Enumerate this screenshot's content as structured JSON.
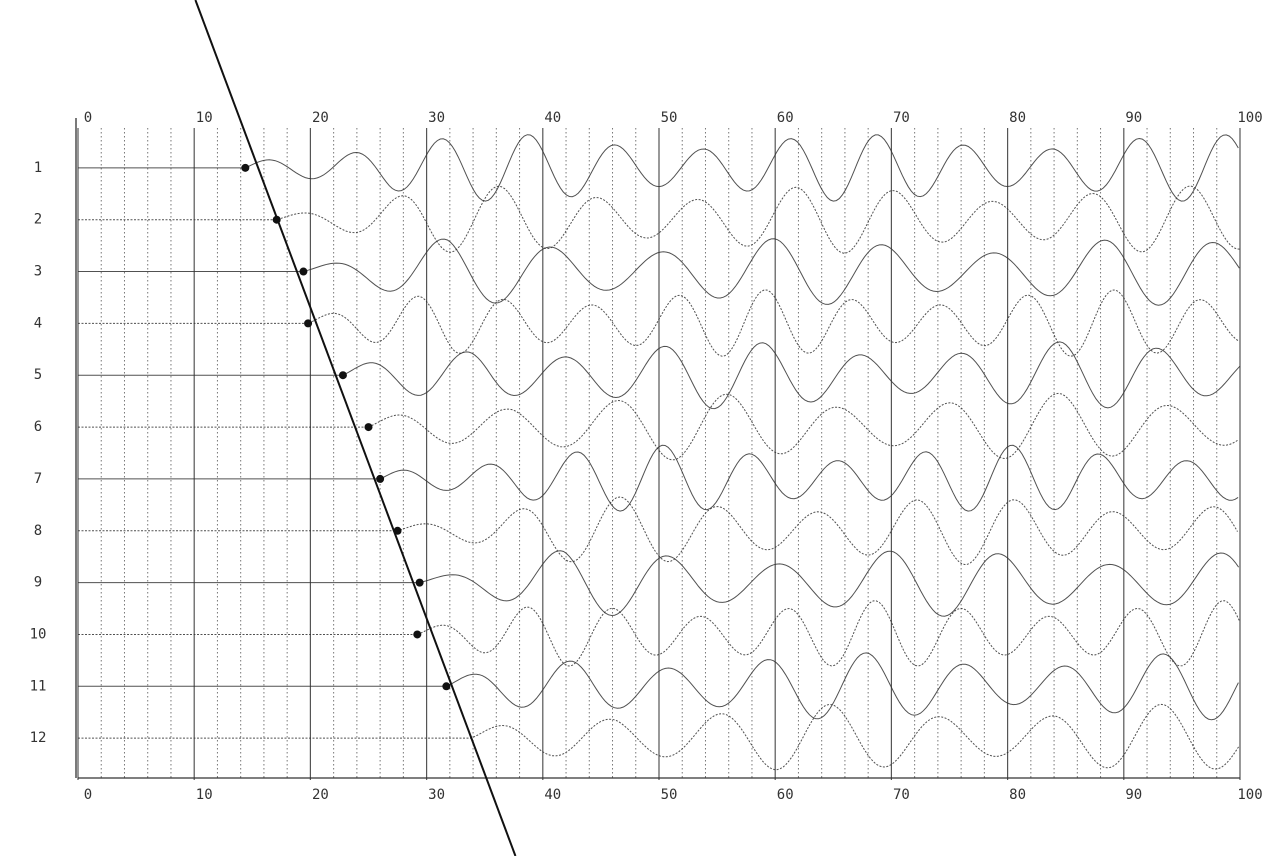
{
  "chart_data": {
    "type": "seismogram",
    "xlim": [
      0,
      100
    ],
    "xticks": [
      0,
      10,
      20,
      30,
      40,
      50,
      60,
      70,
      80,
      90,
      100
    ],
    "ylim": [
      0,
      13
    ],
    "yticks": [
      1,
      2,
      3,
      4,
      5,
      6,
      7,
      8,
      9,
      10,
      11,
      12
    ],
    "y_inverted": true,
    "grid": true,
    "color": "#333333",
    "pick_color": "#111111",
    "first_breaks": [
      14.4,
      17.1,
      19.4,
      19.8,
      22.8,
      25.0,
      26.0,
      27.5,
      29.4,
      29.2,
      31.7,
      null
    ]
  }
}
